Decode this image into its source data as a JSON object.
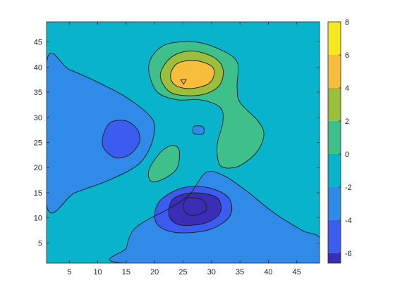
{
  "chart_data": {
    "type": "contourf",
    "title": "",
    "xlabel": "",
    "ylabel": "",
    "xlim": [
      1,
      49
    ],
    "ylim": [
      1,
      49
    ],
    "x_ticks": [
      5,
      10,
      15,
      20,
      25,
      30,
      35,
      40,
      45
    ],
    "y_ticks": [
      5,
      10,
      15,
      20,
      25,
      30,
      35,
      40,
      45
    ],
    "grid": false,
    "colorbar": {
      "position": "right",
      "range": [
        -6.6,
        8
      ],
      "ticks": [
        -6,
        -4,
        -2,
        0,
        2,
        4,
        6,
        8
      ],
      "colormap": "parula"
    },
    "levels": [
      -6,
      -4,
      -2,
      0,
      2,
      4,
      6,
      8
    ],
    "level_colors": {
      "-6": "#3a2fb4",
      "-4": "#3c5cf0",
      "-2": "#2f8ae8",
      "0": "#0ab3cc",
      "2": "#3fbf8a",
      "4": "#9abf3c",
      "6": "#f7bd3c",
      "8": "#f6e81e"
    },
    "regions": [
      {
        "level": -2,
        "points": [
          [
            1,
            41
          ],
          [
            5,
            39.5
          ],
          [
            10,
            37
          ],
          [
            15,
            34
          ],
          [
            19,
            30.5
          ],
          [
            20,
            28
          ],
          [
            19.2,
            24
          ],
          [
            17,
            20.5
          ],
          [
            12,
            17.5
          ],
          [
            6,
            15
          ],
          [
            1,
            12.5
          ]
        ]
      },
      {
        "level": -4,
        "points": [
          [
            11,
            26.5
          ],
          [
            12.3,
            29
          ],
          [
            15,
            29.3
          ],
          [
            17,
            27.5
          ],
          [
            17.3,
            25
          ],
          [
            15.5,
            22.5
          ],
          [
            13,
            22
          ],
          [
            11,
            24
          ]
        ]
      },
      {
        "level": -2,
        "points": [
          [
            14.5,
            1
          ],
          [
            15,
            4
          ],
          [
            16.2,
            7.5
          ],
          [
            19,
            9.8
          ],
          [
            22,
            11.5
          ],
          [
            26,
            14.5
          ],
          [
            29,
            19
          ],
          [
            32,
            18.5
          ],
          [
            36,
            15.5
          ],
          [
            41,
            11
          ],
          [
            46,
            7.5
          ],
          [
            49,
            6
          ],
          [
            49,
            1
          ]
        ]
      },
      {
        "level": -4,
        "points": [
          [
            20,
            10
          ],
          [
            21,
            13.5
          ],
          [
            25,
            16
          ],
          [
            29.5,
            16
          ],
          [
            33,
            14
          ],
          [
            33.3,
            10.5
          ],
          [
            30,
            7.8
          ],
          [
            25,
            7
          ],
          [
            21.5,
            7.8
          ]
        ]
      },
      {
        "level": -6,
        "points": [
          [
            22.5,
            11.5
          ],
          [
            23.5,
            14
          ],
          [
            27,
            15
          ],
          [
            31,
            14
          ],
          [
            31.5,
            11
          ],
          [
            29,
            9
          ],
          [
            25,
            8.5
          ],
          [
            23,
            9.5
          ]
        ]
      },
      {
        "level": -6,
        "points": [
          [
            25,
            12.5
          ],
          [
            26,
            14
          ],
          [
            28.5,
            13.5
          ],
          [
            29,
            11.5
          ],
          [
            27,
            10.5
          ],
          [
            25.5,
            11
          ]
        ]
      },
      {
        "level": -2,
        "points": [
          [
            26.9,
            26.8
          ],
          [
            26.9,
            28.2
          ],
          [
            28.5,
            28.1
          ],
          [
            28.5,
            26.7
          ]
        ]
      },
      {
        "level": 2,
        "points": [
          [
            19,
            19.5
          ],
          [
            21,
            23
          ],
          [
            23,
            24.4
          ],
          [
            24.3,
            23.5
          ],
          [
            24,
            20
          ],
          [
            22,
            18
          ],
          [
            19.5,
            17.2
          ]
        ]
      },
      {
        "level": 2,
        "points": [
          [
            19,
            39
          ],
          [
            19.5,
            42
          ],
          [
            22,
            44.5
          ],
          [
            27,
            45
          ],
          [
            31.5,
            43.5
          ],
          [
            34.5,
            41
          ],
          [
            34.5,
            36
          ],
          [
            35,
            33
          ],
          [
            38,
            29.5
          ],
          [
            39.2,
            27
          ],
          [
            38.5,
            24
          ],
          [
            36.5,
            21.5
          ],
          [
            34,
            20
          ],
          [
            31.5,
            20.5
          ],
          [
            31,
            24.5
          ],
          [
            32,
            29
          ],
          [
            31.5,
            32
          ],
          [
            28,
            33.5
          ],
          [
            24,
            33.5
          ],
          [
            20.5,
            35
          ]
        ]
      },
      {
        "level": 4,
        "points": [
          [
            21,
            38.5
          ],
          [
            23,
            42
          ],
          [
            26.5,
            43.2
          ],
          [
            30.3,
            42
          ],
          [
            32,
            39.7
          ],
          [
            31.5,
            36.5
          ],
          [
            29,
            34.7
          ],
          [
            25.5,
            34.3
          ],
          [
            22.5,
            35.2
          ]
        ]
      },
      {
        "level": 6,
        "points": [
          [
            22.8,
            38.5
          ],
          [
            24,
            40.7
          ],
          [
            27,
            41.3
          ],
          [
            30,
            40.2
          ],
          [
            30.4,
            38.2
          ],
          [
            29.2,
            36.5
          ],
          [
            26,
            35.7
          ],
          [
            23.5,
            36.5
          ]
        ]
      }
    ]
  }
}
